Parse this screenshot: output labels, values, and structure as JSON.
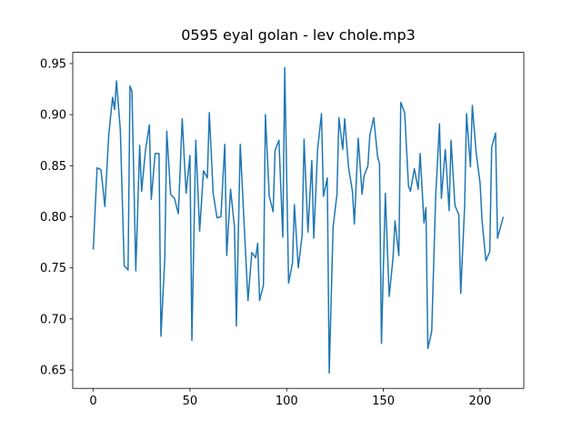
{
  "chart_data": {
    "type": "line",
    "title": "0595 eyal golan - lev chole.mp3",
    "x": [
      0,
      2,
      4,
      6,
      8,
      10,
      11,
      12,
      14,
      16,
      18,
      19,
      20,
      22,
      24,
      25,
      27,
      29,
      30,
      32,
      34,
      35,
      37,
      38,
      40,
      42,
      44,
      46,
      48,
      50,
      51,
      53,
      55,
      57,
      59,
      60,
      62,
      64,
      66,
      68,
      69,
      71,
      73,
      74,
      76,
      78,
      80,
      82,
      84,
      85,
      86,
      88,
      89,
      91,
      93,
      94,
      96,
      98,
      99,
      101,
      103,
      104,
      106,
      108,
      109,
      111,
      113,
      114,
      116,
      118,
      119,
      121,
      122,
      124,
      126,
      127,
      129,
      130,
      132,
      134,
      135,
      137,
      139,
      140,
      142,
      143,
      145,
      147,
      148,
      149,
      151,
      153,
      155,
      156,
      158,
      159,
      161,
      163,
      164,
      166,
      168,
      169,
      171,
      172,
      173,
      175,
      177,
      179,
      180,
      182,
      184,
      185,
      187,
      189,
      190,
      192,
      193,
      195,
      196,
      198,
      200,
      201,
      203,
      205,
      206,
      208,
      209,
      211,
      212
    ],
    "series": [
      {
        "color": "#1f77b4",
        "values": [
          0.768,
          0.848,
          0.846,
          0.81,
          0.88,
          0.917,
          0.905,
          0.933,
          0.885,
          0.752,
          0.748,
          0.928,
          0.923,
          0.747,
          0.87,
          0.825,
          0.865,
          0.89,
          0.817,
          0.862,
          0.862,
          0.683,
          0.76,
          0.884,
          0.822,
          0.818,
          0.803,
          0.896,
          0.823,
          0.86,
          0.679,
          0.875,
          0.786,
          0.845,
          0.838,
          0.902,
          0.823,
          0.799,
          0.8,
          0.871,
          0.762,
          0.827,
          0.79,
          0.693,
          0.871,
          0.793,
          0.718,
          0.765,
          0.76,
          0.774,
          0.718,
          0.733,
          0.9,
          0.82,
          0.805,
          0.865,
          0.875,
          0.78,
          0.946,
          0.735,
          0.755,
          0.812,
          0.75,
          0.782,
          0.876,
          0.785,
          0.855,
          0.779,
          0.866,
          0.901,
          0.82,
          0.838,
          0.647,
          0.79,
          0.822,
          0.897,
          0.866,
          0.896,
          0.848,
          0.825,
          0.793,
          0.877,
          0.822,
          0.84,
          0.85,
          0.88,
          0.897,
          0.859,
          0.852,
          0.676,
          0.823,
          0.722,
          0.76,
          0.796,
          0.762,
          0.912,
          0.902,
          0.83,
          0.825,
          0.847,
          0.827,
          0.862,
          0.794,
          0.809,
          0.671,
          0.688,
          0.818,
          0.891,
          0.818,
          0.866,
          0.806,
          0.875,
          0.811,
          0.802,
          0.725,
          0.81,
          0.901,
          0.849,
          0.909,
          0.862,
          0.833,
          0.797,
          0.757,
          0.766,
          0.868,
          0.882,
          0.779,
          0.793,
          0.8
        ]
      }
    ],
    "xlim": [
      -10.6,
      222.6
    ],
    "xticks": [
      0,
      50,
      100,
      150,
      200
    ],
    "ylim": [
      0.632,
      0.961
    ],
    "yticks": [
      0.65,
      {
        "value": 0.7,
        "label": "0.70"
      },
      0.75,
      {
        "value": 0.8,
        "label": "0.80"
      },
      0.85,
      {
        "value": 0.9,
        "label": "0.90"
      },
      0.95
    ]
  }
}
